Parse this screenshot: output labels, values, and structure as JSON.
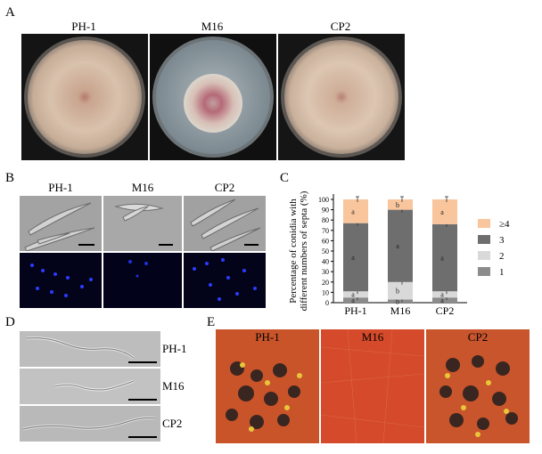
{
  "panelA": {
    "letter": "A",
    "titles": [
      "PH-1",
      "M16",
      "CP2"
    ]
  },
  "panelB": {
    "letter": "B",
    "titles": [
      "PH-1",
      "M16",
      "CP2"
    ]
  },
  "panelC": {
    "letter": "C",
    "chart_data": {
      "type": "bar",
      "stacked": true,
      "categories": [
        "PH-1",
        "M16",
        "CP2"
      ],
      "ylabel": "Percentage of conidia with different numbers of septa (%)",
      "ylabel_lines": [
        "Percentage of conidia with",
        "different numbers of septa (%)"
      ],
      "ylim": [
        0,
        100
      ],
      "yticks": [
        "0",
        "10",
        "20",
        "30",
        "40",
        "50",
        "60",
        "70",
        "80",
        "90",
        "100"
      ],
      "legend_position": "right",
      "series": [
        {
          "name": "1",
          "color": "#8c8c8c",
          "values": [
            5,
            3,
            5
          ],
          "letters": [
            "a",
            "b",
            "a"
          ]
        },
        {
          "name": "2",
          "color": "#d9d9d9",
          "values": [
            6,
            17,
            6
          ],
          "letters": [
            "a",
            "b",
            "a"
          ]
        },
        {
          "name": "3",
          "color": "#6e6e6e",
          "values": [
            66,
            70,
            65
          ],
          "letters": [
            "a",
            "a",
            "a"
          ]
        },
        {
          "name": "≥4",
          "color": "#f8c59c",
          "values": [
            23,
            10,
            24
          ],
          "letters": [
            "a",
            "b",
            "a"
          ]
        }
      ]
    }
  },
  "panelD": {
    "letter": "D",
    "titles": [
      "PH-1",
      "M16",
      "CP2"
    ]
  },
  "panelE": {
    "letter": "E",
    "titles": [
      "PH-1",
      "M16",
      "CP2"
    ]
  }
}
